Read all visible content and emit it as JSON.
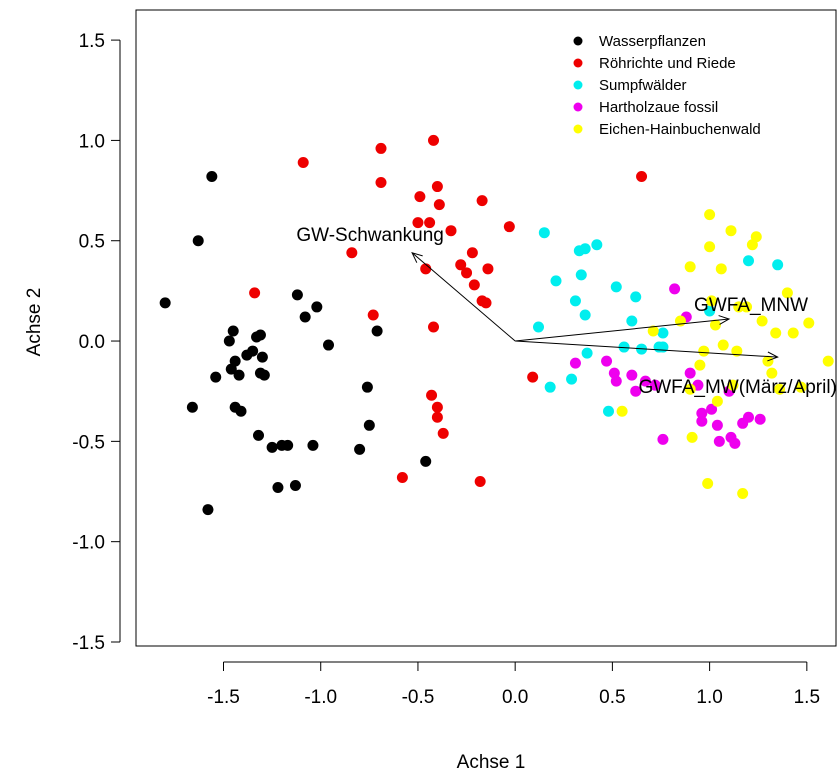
{
  "chart_data": {
    "type": "scatter",
    "xlabel": "Achse 1",
    "ylabel": "Achse 2",
    "xlim": [
      -1.95,
      1.65
    ],
    "ylim": [
      -1.52,
      1.65
    ],
    "x_ticks": [
      -1.5,
      -1.0,
      -0.5,
      0.0,
      0.5,
      1.0,
      1.5
    ],
    "x_tick_labels": [
      "-1.5",
      "-1.0",
      "-0.5",
      "0.0",
      "0.5",
      "1.0",
      "1.5"
    ],
    "y_ticks": [
      -1.5,
      -1.0,
      -0.5,
      0.0,
      0.5,
      1.0,
      1.5
    ],
    "y_tick_labels": [
      "-1.5",
      "-1.0",
      "-0.5",
      "0.0",
      "0.5",
      "1.0",
      "1.5"
    ],
    "grid": false,
    "legend_position": "top-right",
    "series": [
      {
        "name": "Wasserpflanzen",
        "color": "#000000",
        "points": [
          [
            -1.56,
            0.82
          ],
          [
            -1.63,
            0.5
          ],
          [
            -1.8,
            0.19
          ],
          [
            -1.66,
            -0.33
          ],
          [
            -1.58,
            -0.84
          ],
          [
            -1.54,
            -0.18
          ],
          [
            -1.47,
            0.0
          ],
          [
            -1.45,
            0.05
          ],
          [
            -1.44,
            -0.1
          ],
          [
            -1.46,
            -0.14
          ],
          [
            -1.44,
            -0.33
          ],
          [
            -1.41,
            -0.35
          ],
          [
            -1.42,
            -0.17
          ],
          [
            -1.38,
            -0.07
          ],
          [
            -1.35,
            -0.05
          ],
          [
            -1.33,
            0.02
          ],
          [
            -1.31,
            0.03
          ],
          [
            -1.3,
            -0.08
          ],
          [
            -1.31,
            -0.16
          ],
          [
            -1.29,
            -0.17
          ],
          [
            -1.32,
            -0.47
          ],
          [
            -1.25,
            -0.53
          ],
          [
            -1.22,
            -0.73
          ],
          [
            -1.2,
            -0.52
          ],
          [
            -1.17,
            -0.52
          ],
          [
            -1.13,
            -0.72
          ],
          [
            -1.08,
            0.12
          ],
          [
            -1.12,
            0.23
          ],
          [
            -1.04,
            -0.52
          ],
          [
            -1.02,
            0.17
          ],
          [
            -0.96,
            -0.02
          ],
          [
            -0.8,
            -0.54
          ],
          [
            -0.76,
            -0.23
          ],
          [
            -0.75,
            -0.42
          ],
          [
            -0.71,
            0.05
          ],
          [
            -0.46,
            -0.6
          ]
        ]
      },
      {
        "name": "Röhrichte und Riede",
        "color": "#ee0000",
        "points": [
          [
            -1.09,
            0.89
          ],
          [
            -1.34,
            0.24
          ],
          [
            -0.84,
            0.44
          ],
          [
            -0.73,
            0.13
          ],
          [
            -0.69,
            0.96
          ],
          [
            -0.69,
            0.79
          ],
          [
            -0.58,
            -0.68
          ],
          [
            -0.5,
            0.59
          ],
          [
            -0.49,
            0.72
          ],
          [
            -0.46,
            0.36
          ],
          [
            -0.44,
            0.59
          ],
          [
            -0.43,
            -0.27
          ],
          [
            -0.42,
            0.07
          ],
          [
            -0.42,
            1.0
          ],
          [
            -0.4,
            0.77
          ],
          [
            -0.4,
            -0.33
          ],
          [
            -0.4,
            -0.38
          ],
          [
            -0.39,
            0.68
          ],
          [
            -0.37,
            -0.46
          ],
          [
            -0.33,
            0.55
          ],
          [
            -0.28,
            0.38
          ],
          [
            -0.25,
            0.34
          ],
          [
            -0.22,
            0.44
          ],
          [
            -0.21,
            0.28
          ],
          [
            -0.18,
            -0.7
          ],
          [
            -0.17,
            0.7
          ],
          [
            -0.17,
            0.2
          ],
          [
            -0.15,
            0.19
          ],
          [
            -0.14,
            0.36
          ],
          [
            -0.03,
            0.57
          ],
          [
            0.09,
            -0.18
          ],
          [
            0.65,
            0.82
          ]
        ]
      },
      {
        "name": "Sumpfwälder",
        "color": "#00eeee",
        "points": [
          [
            0.12,
            0.07
          ],
          [
            0.15,
            0.54
          ],
          [
            0.18,
            -0.23
          ],
          [
            0.21,
            0.3
          ],
          [
            0.29,
            -0.19
          ],
          [
            0.31,
            0.2
          ],
          [
            0.33,
            0.45
          ],
          [
            0.34,
            0.33
          ],
          [
            0.36,
            0.46
          ],
          [
            0.36,
            0.13
          ],
          [
            0.37,
            -0.06
          ],
          [
            0.42,
            0.48
          ],
          [
            0.48,
            -0.35
          ],
          [
            0.52,
            0.27
          ],
          [
            0.56,
            -0.03
          ],
          [
            0.6,
            0.1
          ],
          [
            0.62,
            0.22
          ],
          [
            0.65,
            -0.04
          ],
          [
            0.74,
            -0.03
          ],
          [
            0.76,
            0.04
          ],
          [
            0.76,
            -0.03
          ],
          [
            1.0,
            0.15
          ],
          [
            1.2,
            0.4
          ],
          [
            1.35,
            0.38
          ]
        ]
      },
      {
        "name": "Hartholzaue fossil",
        "color": "#ee00ee",
        "points": [
          [
            0.31,
            -0.11
          ],
          [
            0.47,
            -0.1
          ],
          [
            0.51,
            -0.16
          ],
          [
            0.52,
            -0.2
          ],
          [
            0.6,
            -0.17
          ],
          [
            0.62,
            -0.25
          ],
          [
            0.67,
            -0.2
          ],
          [
            0.72,
            -0.22
          ],
          [
            0.76,
            -0.49
          ],
          [
            0.82,
            0.26
          ],
          [
            0.88,
            0.12
          ],
          [
            0.9,
            -0.16
          ],
          [
            0.94,
            -0.22
          ],
          [
            0.96,
            -0.36
          ],
          [
            0.96,
            -0.4
          ],
          [
            1.01,
            -0.34
          ],
          [
            1.04,
            -0.42
          ],
          [
            1.05,
            -0.5
          ],
          [
            1.1,
            -0.25
          ],
          [
            1.11,
            -0.48
          ],
          [
            1.13,
            -0.51
          ],
          [
            1.17,
            -0.41
          ],
          [
            1.2,
            -0.38
          ],
          [
            1.26,
            -0.39
          ]
        ]
      },
      {
        "name": "Eichen-Hainbuchenwald",
        "color": "#ffff00",
        "points": [
          [
            0.55,
            -0.35
          ],
          [
            0.71,
            0.05
          ],
          [
            0.85,
            0.1
          ],
          [
            0.9,
            0.37
          ],
          [
            0.9,
            -0.24
          ],
          [
            0.91,
            -0.48
          ],
          [
            0.95,
            -0.12
          ],
          [
            0.97,
            -0.05
          ],
          [
            0.99,
            -0.71
          ],
          [
            1.0,
            0.47
          ],
          [
            1.0,
            0.63
          ],
          [
            1.01,
            0.2
          ],
          [
            1.03,
            0.08
          ],
          [
            1.04,
            -0.3
          ],
          [
            1.06,
            0.36
          ],
          [
            1.07,
            -0.02
          ],
          [
            1.11,
            0.55
          ],
          [
            1.12,
            -0.22
          ],
          [
            1.14,
            -0.05
          ],
          [
            1.15,
            0.17
          ],
          [
            1.17,
            -0.76
          ],
          [
            1.19,
            0.17
          ],
          [
            1.22,
            0.48
          ],
          [
            1.24,
            0.52
          ],
          [
            1.27,
            0.1
          ],
          [
            1.3,
            -0.1
          ],
          [
            1.32,
            -0.16
          ],
          [
            1.34,
            0.04
          ],
          [
            1.36,
            -0.24
          ],
          [
            1.4,
            0.24
          ],
          [
            1.43,
            0.04
          ],
          [
            1.47,
            -0.23
          ],
          [
            1.51,
            0.09
          ],
          [
            1.61,
            -0.1
          ]
        ]
      }
    ],
    "arrows": [
      {
        "label": "GW-Schwankung",
        "x": -0.53,
        "y": 0.44
      },
      {
        "label": "GWFA_MNW",
        "x": 1.1,
        "y": 0.11
      },
      {
        "label": "GWFA_MW(März/April)",
        "x": 1.35,
        "y": -0.08
      }
    ]
  }
}
